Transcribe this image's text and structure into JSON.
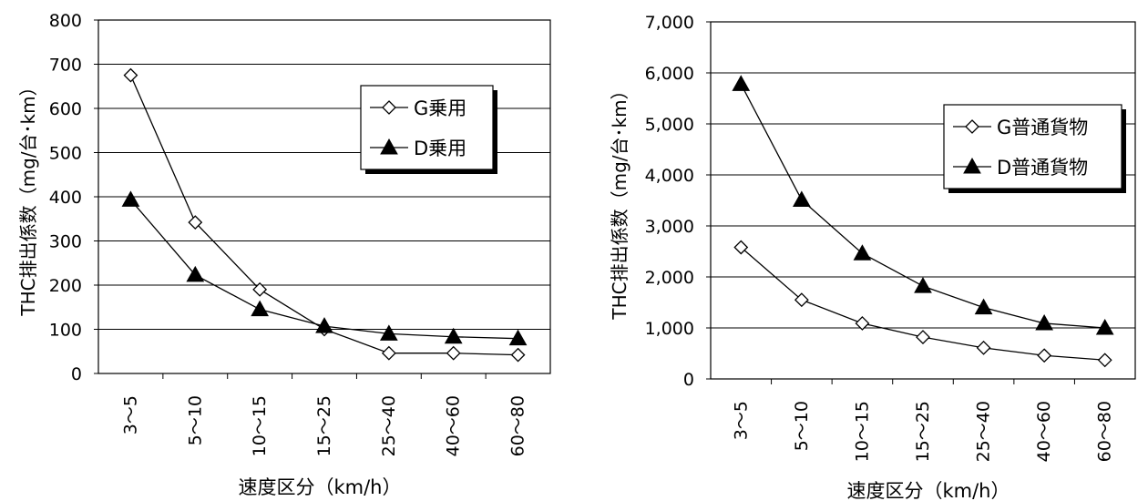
{
  "chart_data": [
    {
      "type": "line",
      "categories": [
        "3～5",
        "5～10",
        "10～15",
        "15～25",
        "25～40",
        "40～60",
        "60～80"
      ],
      "series": [
        {
          "name": "G乗用",
          "marker": "open-diamond",
          "values": [
            675,
            342,
            190,
            100,
            46,
            46,
            42
          ]
        },
        {
          "name": "D乗用",
          "marker": "filled-triangle",
          "values": [
            393,
            223,
            145,
            107,
            90,
            83,
            79
          ]
        }
      ],
      "ylabel": "THC排出係数（mg/台･km）",
      "xlabel": "速度区分（km/h）",
      "ylim": [
        0,
        800
      ],
      "yticks": [
        0,
        100,
        200,
        300,
        400,
        500,
        600,
        700,
        800
      ],
      "ytick_labels": [
        "0",
        "100",
        "200",
        "300",
        "400",
        "500",
        "600",
        "700",
        "800"
      ],
      "grid": true,
      "legend_position": "top-right"
    },
    {
      "type": "line",
      "categories": [
        "3～5",
        "5～10",
        "10～15",
        "15～25",
        "25～40",
        "40～60",
        "60～80"
      ],
      "series": [
        {
          "name": "G普通貨物",
          "marker": "open-diamond",
          "values": [
            2580,
            1550,
            1090,
            820,
            610,
            460,
            370
          ]
        },
        {
          "name": "D普通貨物",
          "marker": "filled-triangle",
          "values": [
            5780,
            3510,
            2460,
            1820,
            1400,
            1090,
            1000
          ]
        }
      ],
      "ylabel": "THC排出係数（mg/台･km）",
      "xlabel": "速度区分（km/h）",
      "ylim": [
        0,
        7000
      ],
      "yticks": [
        0,
        1000,
        2000,
        3000,
        4000,
        5000,
        6000,
        7000
      ],
      "ytick_labels": [
        "0",
        "1,000",
        "2,000",
        "3,000",
        "4,000",
        "5,000",
        "6,000",
        "7,000"
      ],
      "grid": true,
      "legend_position": "top-right"
    }
  ]
}
